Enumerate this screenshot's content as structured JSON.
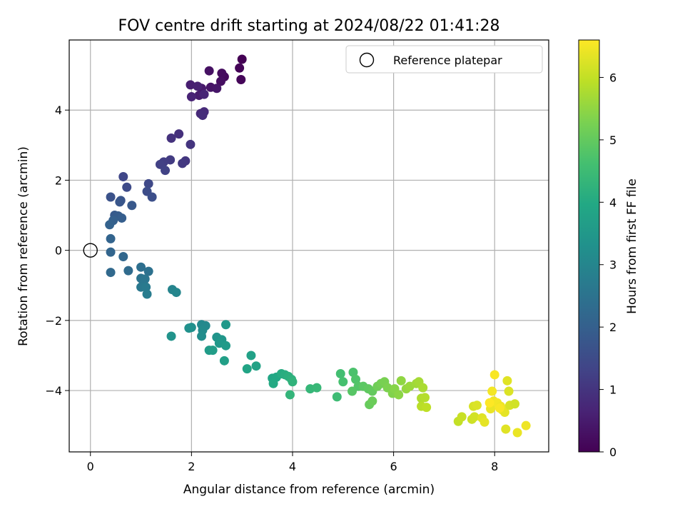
{
  "chart_data": {
    "type": "scatter",
    "title": "FOV centre drift starting at 2024/08/22 01:41:28",
    "xlabel": "Angular distance from reference (arcmin)",
    "ylabel": "Rotation from reference (arcmin)",
    "xlim": [
      -0.42,
      9.07
    ],
    "ylim": [
      -5.75,
      6.0
    ],
    "xticks": [
      0,
      2,
      4,
      6,
      8
    ],
    "yticks": [
      -4,
      -2,
      0,
      2,
      4
    ],
    "xtick_labels": [
      "0",
      "2",
      "4",
      "6",
      "8"
    ],
    "ytick_labels": [
      "−4",
      "−2",
      "0",
      "2",
      "4"
    ],
    "grid": true,
    "legend": {
      "position": "top-right",
      "entries": [
        "Reference platepar"
      ]
    },
    "reference_point": {
      "x": 0,
      "y": 0,
      "label": "Reference platepar"
    },
    "colorbar": {
      "label": "Hours from first FF file",
      "colormap": "viridis",
      "range": [
        0,
        6.6
      ],
      "ticks": [
        0,
        1,
        2,
        3,
        4,
        5,
        6
      ],
      "tick_labels": [
        "0",
        "1",
        "2",
        "3",
        "4",
        "5",
        "6"
      ]
    },
    "points_columns": [
      "x",
      "y",
      "hours"
    ],
    "points": [
      [
        3.0,
        5.45,
        0.0
      ],
      [
        2.95,
        5.2,
        0.05
      ],
      [
        2.98,
        4.87,
        0.1
      ],
      [
        2.65,
        4.95,
        0.15
      ],
      [
        2.6,
        5.05,
        0.2
      ],
      [
        2.58,
        4.82,
        0.25
      ],
      [
        2.35,
        5.12,
        0.3
      ],
      [
        2.38,
        4.65,
        0.35
      ],
      [
        2.5,
        4.62,
        0.4
      ],
      [
        2.2,
        4.62,
        0.45
      ],
      [
        2.15,
        4.42,
        0.5
      ],
      [
        1.98,
        4.72,
        0.55
      ],
      [
        2.12,
        4.68,
        0.6
      ],
      [
        2.0,
        4.38,
        0.65
      ],
      [
        2.25,
        4.45,
        0.7
      ],
      [
        2.18,
        3.9,
        0.75
      ],
      [
        2.25,
        3.95,
        0.8
      ],
      [
        2.22,
        3.85,
        0.85
      ],
      [
        1.75,
        3.32,
        0.9
      ],
      [
        1.6,
        3.2,
        0.95
      ],
      [
        1.98,
        3.02,
        1.0
      ],
      [
        1.88,
        2.55,
        1.05
      ],
      [
        1.82,
        2.48,
        1.1
      ],
      [
        1.58,
        2.58,
        1.15
      ],
      [
        1.45,
        2.52,
        1.2
      ],
      [
        1.38,
        2.45,
        1.25
      ],
      [
        1.48,
        2.28,
        1.3
      ],
      [
        0.65,
        2.1,
        1.4
      ],
      [
        1.15,
        1.9,
        1.45
      ],
      [
        0.72,
        1.8,
        1.5
      ],
      [
        1.12,
        1.68,
        1.55
      ],
      [
        1.22,
        1.52,
        1.6
      ],
      [
        0.4,
        1.52,
        1.65
      ],
      [
        0.6,
        1.42,
        1.7
      ],
      [
        0.58,
        1.38,
        1.75
      ],
      [
        0.82,
        1.28,
        1.8
      ],
      [
        0.48,
        1.0,
        1.85
      ],
      [
        0.55,
        0.98,
        1.9
      ],
      [
        0.62,
        0.92,
        1.95
      ],
      [
        0.45,
        0.85,
        2.0
      ],
      [
        0.38,
        0.73,
        2.05
      ],
      [
        0.4,
        0.33,
        2.1
      ],
      [
        0.4,
        -0.05,
        2.15
      ],
      [
        0.65,
        -0.18,
        2.2
      ],
      [
        0.4,
        -0.63,
        2.25
      ],
      [
        0.75,
        -0.58,
        2.3
      ],
      [
        1.0,
        -0.48,
        2.4
      ],
      [
        1.15,
        -0.6,
        2.45
      ],
      [
        1.0,
        -0.8,
        2.5
      ],
      [
        1.08,
        -0.82,
        2.55
      ],
      [
        1.05,
        -0.95,
        2.6
      ],
      [
        1.0,
        -1.05,
        2.65
      ],
      [
        1.1,
        -1.05,
        2.7
      ],
      [
        1.12,
        -1.25,
        2.75
      ],
      [
        1.62,
        -1.12,
        2.95
      ],
      [
        1.7,
        -1.2,
        3.0
      ],
      [
        2.2,
        -2.12,
        3.05
      ],
      [
        2.28,
        -2.15,
        3.1
      ],
      [
        2.22,
        -2.28,
        3.15
      ],
      [
        2.2,
        -2.45,
        3.2
      ],
      [
        2.0,
        -2.2,
        3.25
      ],
      [
        1.95,
        -2.22,
        3.3
      ],
      [
        1.6,
        -2.45,
        3.35
      ],
      [
        2.5,
        -2.48,
        3.4
      ],
      [
        2.6,
        -2.55,
        3.45
      ],
      [
        2.55,
        -2.65,
        3.5
      ],
      [
        2.68,
        -2.72,
        3.55
      ],
      [
        2.35,
        -2.85,
        3.6
      ],
      [
        2.42,
        -2.85,
        3.65
      ],
      [
        2.65,
        -3.15,
        3.7
      ],
      [
        2.68,
        -2.12,
        3.5
      ],
      [
        3.18,
        -3.0,
        3.75
      ],
      [
        3.28,
        -3.3,
        3.8
      ],
      [
        3.1,
        -3.38,
        3.85
      ],
      [
        3.6,
        -3.65,
        3.9
      ],
      [
        3.68,
        -3.62,
        3.95
      ],
      [
        3.62,
        -3.8,
        4.0
      ],
      [
        3.78,
        -3.52,
        4.05
      ],
      [
        3.85,
        -3.55,
        4.1
      ],
      [
        3.92,
        -3.6,
        4.15
      ],
      [
        3.98,
        -3.68,
        4.2
      ],
      [
        4.0,
        -3.75,
        4.25
      ],
      [
        3.95,
        -4.12,
        4.3
      ],
      [
        4.35,
        -3.95,
        4.35
      ],
      [
        4.48,
        -3.92,
        4.4
      ],
      [
        4.88,
        -4.18,
        4.5
      ],
      [
        4.95,
        -3.52,
        4.6
      ],
      [
        5.0,
        -3.75,
        4.65
      ],
      [
        5.2,
        -3.48,
        4.7
      ],
      [
        5.25,
        -3.68,
        4.75
      ],
      [
        5.3,
        -3.88,
        4.8
      ],
      [
        5.18,
        -4.02,
        4.85
      ],
      [
        5.4,
        -3.88,
        4.9
      ],
      [
        5.5,
        -3.95,
        4.95
      ],
      [
        5.58,
        -4.02,
        5.0
      ],
      [
        5.52,
        -4.4,
        5.05
      ],
      [
        5.58,
        -4.3,
        5.1
      ],
      [
        5.68,
        -3.88,
        5.15
      ],
      [
        5.75,
        -3.8,
        5.2
      ],
      [
        5.82,
        -3.75,
        5.25
      ],
      [
        5.88,
        -3.92,
        5.3
      ],
      [
        5.98,
        -4.08,
        5.35
      ],
      [
        6.02,
        -3.95,
        5.4
      ],
      [
        6.1,
        -4.12,
        5.45
      ],
      [
        6.15,
        -3.72,
        5.5
      ],
      [
        6.25,
        -3.95,
        5.55
      ],
      [
        6.32,
        -3.88,
        5.6
      ],
      [
        6.45,
        -3.8,
        5.65
      ],
      [
        6.5,
        -3.75,
        5.7
      ],
      [
        6.58,
        -3.92,
        5.75
      ],
      [
        6.55,
        -4.22,
        5.8
      ],
      [
        6.62,
        -4.2,
        5.85
      ],
      [
        6.55,
        -4.45,
        5.9
      ],
      [
        6.65,
        -4.48,
        5.95
      ],
      [
        7.28,
        -4.88,
        6.0
      ],
      [
        7.35,
        -4.75,
        6.05
      ],
      [
        7.55,
        -4.82,
        6.1
      ],
      [
        7.6,
        -4.75,
        6.15
      ],
      [
        7.58,
        -4.45,
        6.2
      ],
      [
        7.65,
        -4.42,
        6.25
      ],
      [
        7.75,
        -4.78,
        6.3
      ],
      [
        7.8,
        -4.9,
        6.35
      ],
      [
        7.92,
        -4.52,
        6.4
      ],
      [
        7.98,
        -4.3,
        6.45
      ],
      [
        7.95,
        -4.02,
        6.5
      ],
      [
        8.0,
        -3.55,
        6.55
      ],
      [
        8.05,
        -4.35,
        6.5
      ],
      [
        8.12,
        -4.45,
        6.45
      ],
      [
        8.15,
        -4.55,
        6.4
      ],
      [
        8.2,
        -4.62,
        6.35
      ],
      [
        8.25,
        -3.72,
        6.3
      ],
      [
        8.28,
        -4.02,
        6.25
      ],
      [
        8.3,
        -4.42,
        6.2
      ],
      [
        8.4,
        -4.38,
        6.15
      ],
      [
        8.22,
        -5.1,
        6.3
      ],
      [
        8.45,
        -5.2,
        6.4
      ],
      [
        8.62,
        -5.0,
        6.45
      ],
      [
        7.9,
        -4.35,
        6.6
      ],
      [
        8.1,
        -4.5,
        6.55
      ]
    ]
  }
}
